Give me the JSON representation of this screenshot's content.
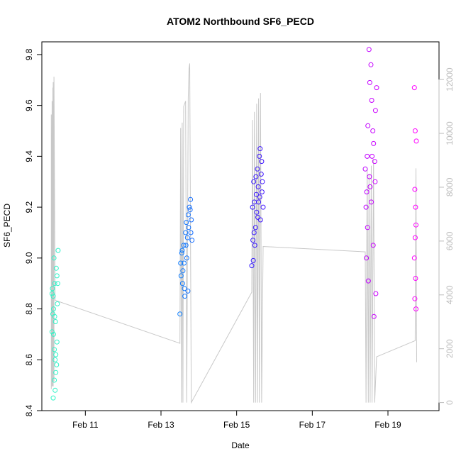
{
  "chart_data": {
    "type": "scatter",
    "title": "ATOM2 Northbound SF6_PECD",
    "xlabel": "Date",
    "ylabel": "SF6_PECD",
    "x_ticks": [
      "Feb 11",
      "Feb 13",
      "Feb 15",
      "Feb 17",
      "Feb 19"
    ],
    "x_tick_values": [
      11,
      13,
      15,
      17,
      19
    ],
    "xlim": [
      9.85,
      20.35
    ],
    "ylim": [
      8.4,
      9.85
    ],
    "y_ticks": [
      8.4,
      8.6,
      8.8,
      9.0,
      9.2,
      9.4,
      9.6,
      9.8
    ],
    "y2_ticks": [
      0,
      2000,
      4000,
      6000,
      8000,
      10000,
      12000
    ],
    "y2lim": [
      -300,
      13400
    ],
    "grid": false,
    "secondary_line_color": "#c8c8c8",
    "point_color_gradient": [
      "#33f5c6",
      "#00bfff",
      "#2020ff",
      "#8a00ff",
      "#ff00ff"
    ],
    "series": [
      {
        "type": "points",
        "values": [
          [
            10.15,
            8.85
          ],
          [
            10.18,
            8.52
          ],
          [
            10.12,
            8.71
          ],
          [
            10.2,
            8.6
          ],
          [
            10.22,
            8.55
          ],
          [
            10.14,
            8.78
          ],
          [
            10.25,
            8.67
          ],
          [
            10.16,
            8.8
          ],
          [
            10.19,
            8.9
          ],
          [
            10.23,
            8.96
          ],
          [
            10.17,
            9.0
          ],
          [
            10.28,
            9.03
          ],
          [
            10.21,
            8.75
          ],
          [
            10.13,
            8.88
          ],
          [
            10.26,
            8.82
          ],
          [
            10.2,
            8.48
          ],
          [
            10.15,
            8.45
          ],
          [
            10.24,
            8.58
          ],
          [
            10.18,
            8.64
          ],
          [
            10.27,
            8.9
          ],
          [
            10.22,
            8.62
          ],
          [
            10.16,
            8.7
          ],
          [
            10.12,
            8.86
          ],
          [
            10.25,
            8.93
          ],
          [
            10.19,
            8.77
          ],
          [
            13.5,
            8.78
          ],
          [
            13.52,
            8.98
          ],
          [
            13.55,
            9.02
          ],
          [
            13.57,
            8.9
          ],
          [
            13.6,
            9.05
          ],
          [
            13.62,
            8.88
          ],
          [
            13.65,
            9.1
          ],
          [
            13.67,
            9.14
          ],
          [
            13.7,
            9.08
          ],
          [
            13.72,
            9.17
          ],
          [
            13.75,
            9.2
          ],
          [
            13.78,
            9.23
          ],
          [
            13.8,
            9.15
          ],
          [
            13.82,
            9.07
          ],
          [
            13.58,
            8.95
          ],
          [
            13.63,
            8.85
          ],
          [
            13.68,
            9.0
          ],
          [
            13.73,
            9.12
          ],
          [
            13.53,
            8.93
          ],
          [
            13.77,
            9.19
          ],
          [
            13.61,
            8.98
          ],
          [
            13.66,
            9.05
          ],
          [
            13.71,
            8.87
          ],
          [
            13.56,
            9.03
          ],
          [
            13.79,
            9.1
          ],
          [
            15.4,
            8.97
          ],
          [
            15.42,
            9.2
          ],
          [
            15.45,
            9.3
          ],
          [
            15.47,
            9.22
          ],
          [
            15.5,
            9.12
          ],
          [
            15.52,
            9.25
          ],
          [
            15.55,
            9.35
          ],
          [
            15.57,
            9.28
          ],
          [
            15.6,
            9.4
          ],
          [
            15.62,
            9.43
          ],
          [
            15.65,
            9.33
          ],
          [
            15.67,
            9.26
          ],
          [
            15.7,
            9.2
          ],
          [
            15.43,
            9.07
          ],
          [
            15.48,
            9.05
          ],
          [
            15.53,
            9.18
          ],
          [
            15.58,
            9.22
          ],
          [
            15.63,
            9.15
          ],
          [
            15.68,
            9.3
          ],
          [
            15.46,
            9.1
          ],
          [
            15.51,
            9.32
          ],
          [
            15.56,
            9.16
          ],
          [
            15.61,
            9.24
          ],
          [
            15.66,
            9.38
          ],
          [
            15.44,
            8.99
          ],
          [
            18.4,
            9.35
          ],
          [
            18.42,
            9.2
          ],
          [
            18.45,
            9.4
          ],
          [
            18.47,
            9.52
          ],
          [
            18.5,
            9.82
          ],
          [
            18.52,
            9.69
          ],
          [
            18.55,
            9.76
          ],
          [
            18.57,
            9.62
          ],
          [
            18.6,
            9.5
          ],
          [
            18.62,
            9.45
          ],
          [
            18.65,
            9.38
          ],
          [
            18.67,
            9.58
          ],
          [
            18.7,
            9.67
          ],
          [
            18.43,
            9.0
          ],
          [
            18.48,
            8.91
          ],
          [
            18.53,
            9.28
          ],
          [
            18.58,
            9.4
          ],
          [
            18.63,
            8.77
          ],
          [
            18.68,
            8.86
          ],
          [
            18.46,
            9.12
          ],
          [
            18.51,
            9.32
          ],
          [
            18.56,
            9.22
          ],
          [
            18.61,
            9.05
          ],
          [
            18.66,
            9.3
          ],
          [
            18.44,
            9.26
          ],
          [
            19.7,
            9.67
          ],
          [
            19.72,
            9.5
          ],
          [
            19.75,
            9.46
          ],
          [
            19.71,
            9.27
          ],
          [
            19.73,
            9.2
          ],
          [
            19.74,
            9.13
          ],
          [
            19.72,
            9.08
          ],
          [
            19.7,
            9.0
          ],
          [
            19.73,
            8.92
          ],
          [
            19.71,
            8.84
          ],
          [
            19.74,
            8.8
          ]
        ]
      },
      {
        "type": "line",
        "axis": "right",
        "values": [
          [
            10.1,
            500
          ],
          [
            10.1,
            10700
          ],
          [
            10.12,
            600
          ],
          [
            10.12,
            11200
          ],
          [
            10.14,
            600
          ],
          [
            10.14,
            11700
          ],
          [
            10.15,
            600
          ],
          [
            10.15,
            11900
          ],
          [
            10.17,
            800
          ],
          [
            10.17,
            12100
          ],
          [
            10.2,
            3800
          ],
          [
            13.5,
            2200
          ],
          [
            13.52,
            10200
          ],
          [
            13.54,
            0
          ],
          [
            13.56,
            10400
          ],
          [
            13.58,
            0
          ],
          [
            13.6,
            11000
          ],
          [
            13.65,
            11200
          ],
          [
            13.68,
            0
          ],
          [
            13.72,
            11300
          ],
          [
            13.74,
            12400
          ],
          [
            13.76,
            12600
          ],
          [
            13.8,
            0
          ],
          [
            15.4,
            4100
          ],
          [
            15.42,
            10500
          ],
          [
            15.45,
            0
          ],
          [
            15.47,
            10800
          ],
          [
            15.5,
            0
          ],
          [
            15.53,
            11100
          ],
          [
            15.55,
            0
          ],
          [
            15.58,
            11300
          ],
          [
            15.6,
            0
          ],
          [
            15.63,
            11500
          ],
          [
            15.66,
            0
          ],
          [
            15.7,
            5800
          ],
          [
            18.4,
            5600
          ],
          [
            18.42,
            0
          ],
          [
            18.45,
            8700
          ],
          [
            18.48,
            0
          ],
          [
            18.5,
            8500
          ],
          [
            18.53,
            0
          ],
          [
            18.56,
            8800
          ],
          [
            18.58,
            0
          ],
          [
            18.62,
            9000
          ],
          [
            18.65,
            0
          ],
          [
            18.7,
            1700
          ],
          [
            19.72,
            2300
          ],
          [
            19.74,
            8700
          ],
          [
            19.76,
            1500
          ]
        ]
      }
    ]
  }
}
